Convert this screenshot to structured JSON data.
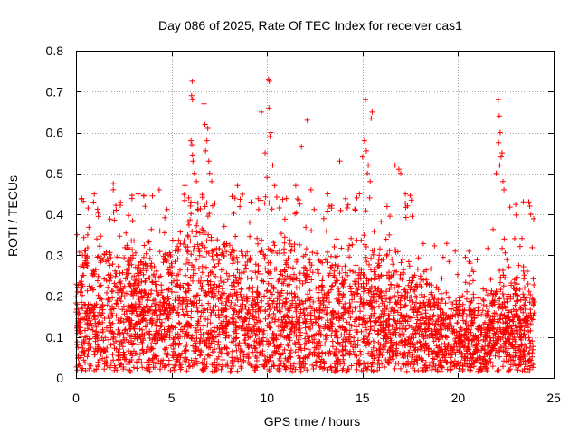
{
  "chart_data": {
    "type": "scatter",
    "title": "Day 086 of 2025, Rate Of TEC Index for receiver cas1",
    "xlabel": "GPS time / hours",
    "ylabel": "ROTI / TECUs",
    "xlim": [
      0,
      25
    ],
    "ylim": [
      0,
      0.8
    ],
    "grid": true,
    "xticks": [
      0,
      5,
      10,
      15,
      20,
      25
    ],
    "xtick_labels": [
      "0",
      "5",
      "10",
      "15",
      "20",
      "25"
    ],
    "yticks": [
      0,
      0.1,
      0.2,
      0.3,
      0.4,
      0.5,
      0.6,
      0.7,
      0.8
    ],
    "ytick_labels": [
      "0",
      "0.1",
      "0.2",
      "0.3",
      "0.4",
      "0.5",
      "0.6",
      "0.7",
      "0.8"
    ],
    "series": [
      {
        "name": "ROTI",
        "color": "#ff0000",
        "marker": "plus",
        "x_range": [
          0,
          24
        ],
        "bulk_profile": [
          [
            0.0,
            0.13,
            0.17
          ],
          [
            1.0,
            0.12,
            0.17
          ],
          [
            2.0,
            0.12,
            0.17
          ],
          [
            3.0,
            0.13,
            0.19
          ],
          [
            4.0,
            0.12,
            0.17
          ],
          [
            5.0,
            0.13,
            0.19
          ],
          [
            6.0,
            0.15,
            0.22
          ],
          [
            7.0,
            0.13,
            0.2
          ],
          [
            8.0,
            0.13,
            0.18
          ],
          [
            9.0,
            0.12,
            0.17
          ],
          [
            10.0,
            0.13,
            0.2
          ],
          [
            11.0,
            0.13,
            0.2
          ],
          [
            12.0,
            0.12,
            0.18
          ],
          [
            13.0,
            0.12,
            0.17
          ],
          [
            14.0,
            0.12,
            0.18
          ],
          [
            15.0,
            0.13,
            0.19
          ],
          [
            16.0,
            0.12,
            0.18
          ],
          [
            17.0,
            0.12,
            0.17
          ],
          [
            18.0,
            0.1,
            0.15
          ],
          [
            19.0,
            0.09,
            0.12
          ],
          [
            20.0,
            0.08,
            0.1
          ],
          [
            21.0,
            0.08,
            0.11
          ],
          [
            22.0,
            0.1,
            0.15
          ],
          [
            23.0,
            0.11,
            0.16
          ],
          [
            24.0,
            0.1,
            0.14
          ]
        ],
        "outliers": [
          [
            0.05,
            0.35
          ],
          [
            1.95,
            0.475
          ],
          [
            1.95,
            0.46
          ],
          [
            2.1,
            0.41
          ],
          [
            4.35,
            0.46
          ],
          [
            5.7,
            0.47
          ],
          [
            5.9,
            0.44
          ],
          [
            6.05,
            0.69
          ],
          [
            6.08,
            0.725
          ],
          [
            6.1,
            0.68
          ],
          [
            6.02,
            0.58
          ],
          [
            6.06,
            0.57
          ],
          [
            6.1,
            0.545
          ],
          [
            6.12,
            0.53
          ],
          [
            6.2,
            0.5
          ],
          [
            6.3,
            0.48
          ],
          [
            6.7,
            0.67
          ],
          [
            6.75,
            0.62
          ],
          [
            6.9,
            0.61
          ],
          [
            6.85,
            0.58
          ],
          [
            6.78,
            0.555
          ],
          [
            6.95,
            0.53
          ],
          [
            7.0,
            0.5
          ],
          [
            7.1,
            0.48
          ],
          [
            8.45,
            0.47
          ],
          [
            9.7,
            0.65
          ],
          [
            9.9,
            0.55
          ],
          [
            10.08,
            0.73
          ],
          [
            10.12,
            0.725
          ],
          [
            10.1,
            0.66
          ],
          [
            10.2,
            0.6
          ],
          [
            10.15,
            0.59
          ],
          [
            10.3,
            0.52
          ],
          [
            10.0,
            0.49
          ],
          [
            10.4,
            0.47
          ],
          [
            11.5,
            0.47
          ],
          [
            11.8,
            0.565
          ],
          [
            12.1,
            0.63
          ],
          [
            12.3,
            0.46
          ],
          [
            13.8,
            0.53
          ],
          [
            14.7,
            0.44
          ],
          [
            15.15,
            0.68
          ],
          [
            15.5,
            0.65
          ],
          [
            15.45,
            0.635
          ],
          [
            15.1,
            0.58
          ],
          [
            15.2,
            0.555
          ],
          [
            15.0,
            0.54
          ],
          [
            15.3,
            0.52
          ],
          [
            15.25,
            0.5
          ],
          [
            15.4,
            0.48
          ],
          [
            16.7,
            0.52
          ],
          [
            16.9,
            0.51
          ],
          [
            17.0,
            0.5
          ],
          [
            19.85,
            0.31
          ],
          [
            20.8,
            0.26
          ],
          [
            22.1,
            0.68
          ],
          [
            22.15,
            0.64
          ],
          [
            22.2,
            0.6
          ],
          [
            22.12,
            0.575
          ],
          [
            22.25,
            0.54
          ],
          [
            22.18,
            0.52
          ],
          [
            22.3,
            0.55
          ],
          [
            22.0,
            0.5
          ],
          [
            22.35,
            0.48
          ],
          [
            22.4,
            0.46
          ],
          [
            23.7,
            0.43
          ],
          [
            23.75,
            0.42
          ],
          [
            23.8,
            0.4
          ]
        ]
      }
    ]
  }
}
